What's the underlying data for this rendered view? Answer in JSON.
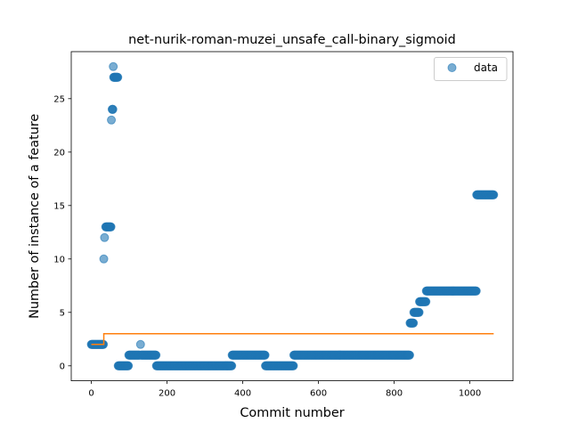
{
  "chart_data": {
    "type": "scatter",
    "title": "net-nurik-roman-muzei_unsafe_call-binary_sigmoid",
    "xlabel": "Commit number",
    "ylabel": "Number of instance of a feature",
    "xlim": [
      -53,
      1114
    ],
    "ylim": [
      -1.4,
      29.4
    ],
    "x_ticks": [
      0,
      200,
      400,
      600,
      800,
      1000
    ],
    "y_ticks": [
      0,
      5,
      10,
      15,
      20,
      25
    ],
    "grid": false,
    "legend": {
      "position": "top-right",
      "entries": [
        "data"
      ]
    },
    "colors": {
      "data": "#1f77b4",
      "fit": "#ff7f0e"
    },
    "series": [
      {
        "name": "data",
        "kind": "scatter",
        "segments": [
          {
            "x_start": 0,
            "x_end": 32,
            "y": 2
          },
          {
            "x_start": 33,
            "x_end": 33,
            "y": 10
          },
          {
            "x_start": 35,
            "x_end": 35,
            "y": 12
          },
          {
            "x_start": 38,
            "x_end": 52,
            "y": 13
          },
          {
            "x_start": 53,
            "x_end": 53,
            "y": 23
          },
          {
            "x_start": 55,
            "x_end": 57,
            "y": 24
          },
          {
            "x_start": 58,
            "x_end": 58,
            "y": 28
          },
          {
            "x_start": 59,
            "x_end": 70,
            "y": 27
          },
          {
            "x_start": 71,
            "x_end": 98,
            "y": 0
          },
          {
            "x_start": 99,
            "x_end": 128,
            "y": 1
          },
          {
            "x_start": 130,
            "x_end": 130,
            "y": 2
          },
          {
            "x_start": 131,
            "x_end": 171,
            "y": 1
          },
          {
            "x_start": 172,
            "x_end": 371,
            "y": 0
          },
          {
            "x_start": 372,
            "x_end": 459,
            "y": 1
          },
          {
            "x_start": 460,
            "x_end": 534,
            "y": 0
          },
          {
            "x_start": 535,
            "x_end": 841,
            "y": 1
          },
          {
            "x_start": 842,
            "x_end": 851,
            "y": 4
          },
          {
            "x_start": 852,
            "x_end": 866,
            "y": 5
          },
          {
            "x_start": 867,
            "x_end": 884,
            "y": 6
          },
          {
            "x_start": 885,
            "x_end": 1017,
            "y": 7
          },
          {
            "x_start": 1018,
            "x_end": 1063,
            "y": 16
          }
        ]
      },
      {
        "name": "",
        "kind": "step-line",
        "points": [
          [
            0,
            2
          ],
          [
            33,
            2
          ],
          [
            33,
            3
          ],
          [
            1063,
            3
          ]
        ]
      }
    ]
  }
}
